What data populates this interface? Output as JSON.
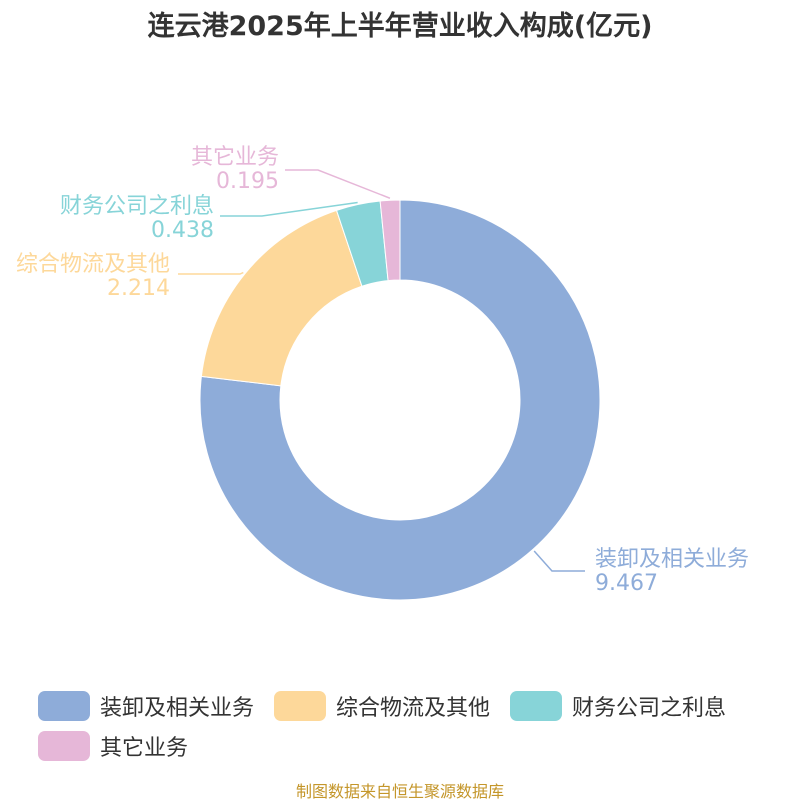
{
  "chart_data": {
    "type": "pie",
    "subtype": "donut",
    "title": "连云港2025年上半年营业收入构成(亿元)",
    "slices": [
      {
        "label": "装卸及相关业务",
        "value": 9.467,
        "value_text": "9.467",
        "color": "#8eacd9"
      },
      {
        "label": "综合物流及其他",
        "value": 2.214,
        "value_text": "2.214",
        "color": "#fdd89a"
      },
      {
        "label": "财务公司之利息",
        "value": 0.438,
        "value_text": "0.438",
        "color": "#87d4d8"
      },
      {
        "label": "其它业务",
        "value": 0.195,
        "value_text": "0.195",
        "color": "#e6b7d8"
      }
    ],
    "legend_position": "bottom"
  },
  "source": "制图数据来自恒生聚源数据库"
}
